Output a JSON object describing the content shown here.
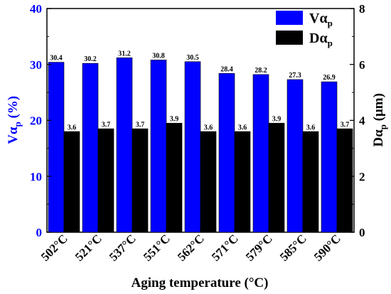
{
  "chart_data": {
    "type": "bar",
    "categories": [
      "502°C",
      "521°C",
      "537°C",
      "551°C",
      "562°C",
      "571°C",
      "579°C",
      "585°C",
      "590°C"
    ],
    "series": [
      {
        "name": "Vα",
        "name_sub": "p",
        "axis": "left",
        "color": "#0000ff",
        "values": [
          30.4,
          30.2,
          31.2,
          30.8,
          30.5,
          28.4,
          28.2,
          27.3,
          26.9
        ],
        "labels": [
          "30.4",
          "30.2",
          "31.2",
          "30.8",
          "30.5",
          "28.4",
          "28.2",
          "27.3",
          "26.9"
        ]
      },
      {
        "name": "Dα",
        "name_sub": "p",
        "axis": "right",
        "color": "#000000",
        "values": [
          3.6,
          3.7,
          3.7,
          3.9,
          3.6,
          3.6,
          3.9,
          3.6,
          3.7
        ],
        "labels": [
          "3.6",
          "3.7",
          "3.7",
          "3.9",
          "3.6",
          "3.6",
          "3.9",
          "3.6",
          "3.7"
        ]
      }
    ],
    "xlabel": "Aging temperature (°C)",
    "ylabel_left": {
      "main": "Vα",
      "sub": "p",
      "suffix": " (%)"
    },
    "ylabel_right": {
      "main": "Dα",
      "sub": "p",
      "suffix": " (μm)"
    },
    "ylim_left": [
      0,
      40
    ],
    "yticks_left": [
      "0",
      "10",
      "20",
      "30",
      "40"
    ],
    "ylim_right": [
      0,
      8
    ],
    "yticks_right": [
      "0",
      "2",
      "4",
      "6",
      "8"
    ],
    "grid": false,
    "legend_position": "top-right",
    "left_axis_color": "#0000ff",
    "right_axis_color": "#000000"
  }
}
